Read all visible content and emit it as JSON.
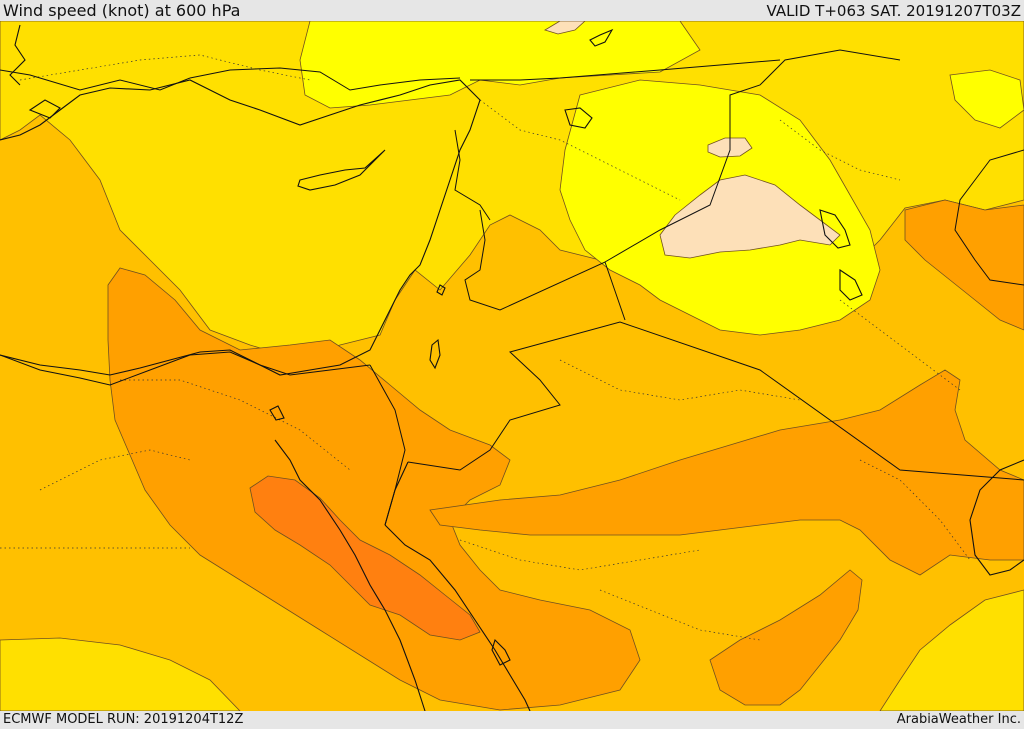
{
  "header": {
    "title": "Wind speed (knot) at 600 hPa",
    "valid_time": "VALID T+063 SAT. 20191207T03Z"
  },
  "footer": {
    "model_run": "ECMWF MODEL RUN: 20191204T12Z",
    "credit": "ArabiaWeather Inc."
  },
  "colors": {
    "very_light": "#fde0b8",
    "bright_yellow": "#ffff00",
    "yellow": "#ffe000",
    "light_orange": "#ffc000",
    "orange": "#ffa000",
    "dark_orange": "#ff8010",
    "coast": "#111111",
    "contour": "#705020"
  },
  "legend": []
}
